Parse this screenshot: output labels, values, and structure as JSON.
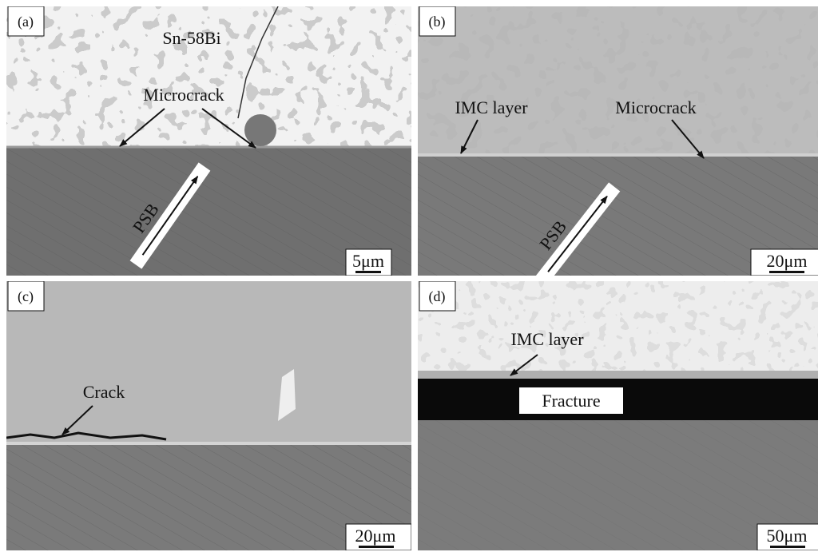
{
  "panels": [
    {
      "label": "(a)",
      "annotations": [
        "Sn-58Bi",
        "Microcrack",
        "PSB"
      ],
      "scale_bar": "5μm"
    },
    {
      "label": "(b)",
      "annotations": [
        "IMC layer",
        "Microcrack",
        "PSB"
      ],
      "scale_bar": "20μm"
    },
    {
      "label": "(c)",
      "annotations": [
        "Crack"
      ],
      "scale_bar": "20μm"
    },
    {
      "label": "(d)",
      "annotations": [
        "IMC layer",
        "Fracture"
      ],
      "scale_bar": "50μm"
    }
  ]
}
